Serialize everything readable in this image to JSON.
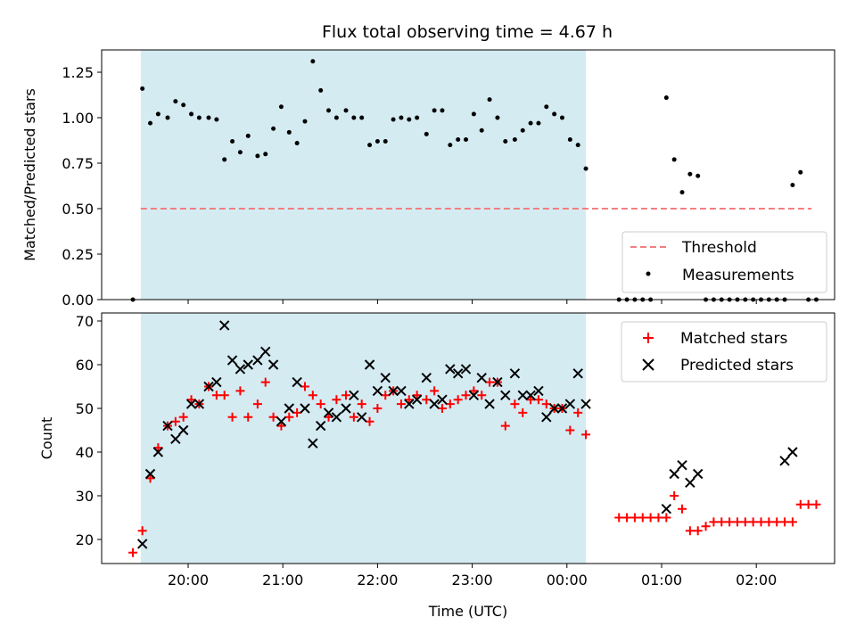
{
  "chart_data": [
    {
      "type": "scatter",
      "title": "Flux total observing time = 4.67 h",
      "xlabel": "",
      "ylabel": "Matched/Predicted stars",
      "ylim": [
        0,
        1.38
      ],
      "yticks": [
        "0.00",
        "0.25",
        "0.50",
        "0.75",
        "1.00",
        "1.25"
      ],
      "x_tick_labels": [
        "20:00",
        "21:00",
        "22:00",
        "23:00",
        "00:00",
        "01:00",
        "02:00"
      ],
      "shaded_span": {
        "start": "19:30",
        "end": "00:12",
        "color": "#d4ebf2"
      },
      "legend": {
        "position": "lower-right",
        "entries": [
          "Threshold",
          "Measurements"
        ]
      },
      "series": [
        {
          "name": "Threshold",
          "kind": "line",
          "style": "dashed",
          "color": "#f08080",
          "x": [
            "19:30",
            "02:35"
          ],
          "y": [
            0.5,
            0.5
          ]
        },
        {
          "name": "Measurements",
          "kind": "points",
          "color": "#000000",
          "x": [
            "19:25",
            "19:31",
            "19:36",
            "19:41",
            "19:47",
            "19:52",
            "19:57",
            "20:02",
            "20:07",
            "20:13",
            "20:18",
            "20:23",
            "20:28",
            "20:33",
            "20:38",
            "20:44",
            "20:49",
            "20:54",
            "20:59",
            "21:04",
            "21:09",
            "21:14",
            "21:19",
            "21:24",
            "21:29",
            "21:34",
            "21:40",
            "21:45",
            "21:50",
            "21:55",
            "22:00",
            "22:05",
            "22:10",
            "22:15",
            "22:20",
            "22:25",
            "22:31",
            "22:36",
            "22:41",
            "22:46",
            "22:51",
            "22:56",
            "23:01",
            "23:06",
            "23:11",
            "23:16",
            "23:21",
            "23:27",
            "23:32",
            "23:37",
            "23:42",
            "23:47",
            "23:52",
            "23:57",
            "00:02",
            "00:07",
            "00:12",
            "00:33",
            "00:38",
            "00:43",
            "00:48",
            "00:53",
            "01:03",
            "01:08",
            "01:13",
            "01:18",
            "01:23",
            "01:28",
            "01:33",
            "01:38",
            "01:43",
            "01:48",
            "01:53",
            "01:58",
            "02:03",
            "02:08",
            "02:13",
            "02:18",
            "02:23",
            "02:28",
            "02:33",
            "02:38"
          ],
          "y": [
            0.0,
            1.16,
            0.97,
            1.02,
            1.0,
            1.09,
            1.07,
            1.02,
            1.0,
            1.0,
            0.99,
            0.77,
            0.87,
            0.81,
            0.9,
            0.79,
            0.8,
            0.94,
            1.06,
            0.92,
            0.86,
            0.98,
            1.31,
            1.15,
            1.04,
            1.0,
            1.04,
            1.0,
            1.0,
            0.85,
            0.87,
            0.87,
            0.99,
            1.0,
            0.99,
            1.0,
            0.91,
            1.04,
            1.04,
            0.85,
            0.88,
            0.88,
            1.02,
            0.93,
            1.1,
            1.0,
            0.87,
            0.88,
            0.93,
            0.97,
            0.97,
            1.06,
            1.02,
            1.0,
            0.88,
            0.85,
            0.72,
            0.0,
            0.0,
            0.0,
            0.0,
            0.0,
            1.11,
            0.77,
            0.59,
            0.69,
            0.68,
            0.0,
            0.0,
            0.0,
            0.0,
            0.0,
            0.0,
            0.0,
            0.0,
            0.0,
            0.0,
            0.0,
            0.63,
            0.7,
            0.0,
            0.0
          ]
        }
      ]
    },
    {
      "type": "scatter",
      "title": "",
      "xlabel": "Time (UTC)",
      "ylabel": "Count",
      "ylim": [
        14,
        72
      ],
      "yticks": [
        "20",
        "30",
        "40",
        "50",
        "60",
        "70"
      ],
      "x_tick_labels": [
        "20:00",
        "21:00",
        "22:00",
        "23:00",
        "00:00",
        "01:00",
        "02:00"
      ],
      "shaded_span": {
        "start": "19:30",
        "end": "00:12",
        "color": "#d4ebf2"
      },
      "legend": {
        "position": "upper-right",
        "entries": [
          "Matched stars",
          "Predicted stars"
        ]
      },
      "series": [
        {
          "name": "Matched stars",
          "marker": "plus",
          "color": "#ff0000",
          "x": [
            "19:25",
            "19:31",
            "19:36",
            "19:41",
            "19:47",
            "19:52",
            "19:57",
            "20:02",
            "20:07",
            "20:13",
            "20:18",
            "20:23",
            "20:28",
            "20:33",
            "20:38",
            "20:44",
            "20:49",
            "20:54",
            "20:59",
            "21:04",
            "21:09",
            "21:14",
            "21:19",
            "21:24",
            "21:29",
            "21:34",
            "21:40",
            "21:45",
            "21:50",
            "21:55",
            "22:00",
            "22:05",
            "22:10",
            "22:15",
            "22:20",
            "22:25",
            "22:31",
            "22:36",
            "22:41",
            "22:46",
            "22:51",
            "22:56",
            "23:01",
            "23:06",
            "23:11",
            "23:16",
            "23:21",
            "23:27",
            "23:32",
            "23:37",
            "23:42",
            "23:47",
            "23:52",
            "23:57",
            "00:02",
            "00:07",
            "00:12",
            "00:33",
            "00:38",
            "00:43",
            "00:48",
            "00:53",
            "00:58",
            "01:03",
            "01:08",
            "01:13",
            "01:18",
            "01:23",
            "01:28",
            "01:33",
            "01:38",
            "01:43",
            "01:48",
            "01:53",
            "01:58",
            "02:03",
            "02:08",
            "02:13",
            "02:18",
            "02:23",
            "02:28",
            "02:33",
            "02:38"
          ],
          "y": [
            17,
            22,
            34,
            41,
            46,
            47,
            48,
            52,
            51,
            55,
            53,
            53,
            48,
            54,
            48,
            51,
            56,
            48,
            46,
            48,
            49,
            55,
            53,
            51,
            48,
            52,
            53,
            48,
            51,
            47,
            50,
            53,
            54,
            51,
            52,
            53,
            52,
            54,
            50,
            51,
            52,
            53,
            54,
            53,
            56,
            56,
            46,
            51,
            49,
            52,
            52,
            51,
            50,
            50,
            45,
            49,
            44,
            25,
            25,
            25,
            25,
            25,
            25,
            25,
            30,
            27,
            22,
            22,
            23,
            24,
            24,
            24,
            24,
            24,
            24,
            24,
            24,
            24,
            24,
            24,
            28,
            28,
            28
          ]
        },
        {
          "name": "Predicted stars",
          "marker": "x",
          "color": "#000000",
          "x": [
            "19:31",
            "19:36",
            "19:41",
            "19:47",
            "19:52",
            "19:57",
            "20:02",
            "20:07",
            "20:13",
            "20:18",
            "20:23",
            "20:28",
            "20:33",
            "20:38",
            "20:44",
            "20:49",
            "20:54",
            "20:59",
            "21:04",
            "21:09",
            "21:14",
            "21:19",
            "21:24",
            "21:29",
            "21:34",
            "21:40",
            "21:45",
            "21:50",
            "21:55",
            "22:00",
            "22:05",
            "22:10",
            "22:15",
            "22:20",
            "22:25",
            "22:31",
            "22:36",
            "22:41",
            "22:46",
            "22:51",
            "22:56",
            "23:01",
            "23:06",
            "23:11",
            "23:16",
            "23:21",
            "23:27",
            "23:32",
            "23:37",
            "23:42",
            "23:47",
            "23:52",
            "23:57",
            "00:02",
            "00:07",
            "00:12",
            "01:03",
            "01:08",
            "01:13",
            "01:18",
            "01:23",
            "02:18",
            "02:23"
          ],
          "y": [
            19,
            35,
            40,
            46,
            43,
            45,
            51,
            51,
            55,
            56,
            69,
            61,
            59,
            60,
            61,
            63,
            60,
            47,
            50,
            56,
            50,
            42,
            46,
            49,
            48,
            50,
            53,
            48,
            60,
            54,
            57,
            54,
            54,
            51,
            52,
            57,
            51,
            52,
            59,
            58,
            59,
            53,
            57,
            51,
            56,
            53,
            58,
            53,
            53,
            54,
            48,
            50,
            50,
            51,
            58,
            51,
            27,
            35,
            37,
            33,
            35,
            38,
            40
          ]
        }
      ]
    }
  ]
}
